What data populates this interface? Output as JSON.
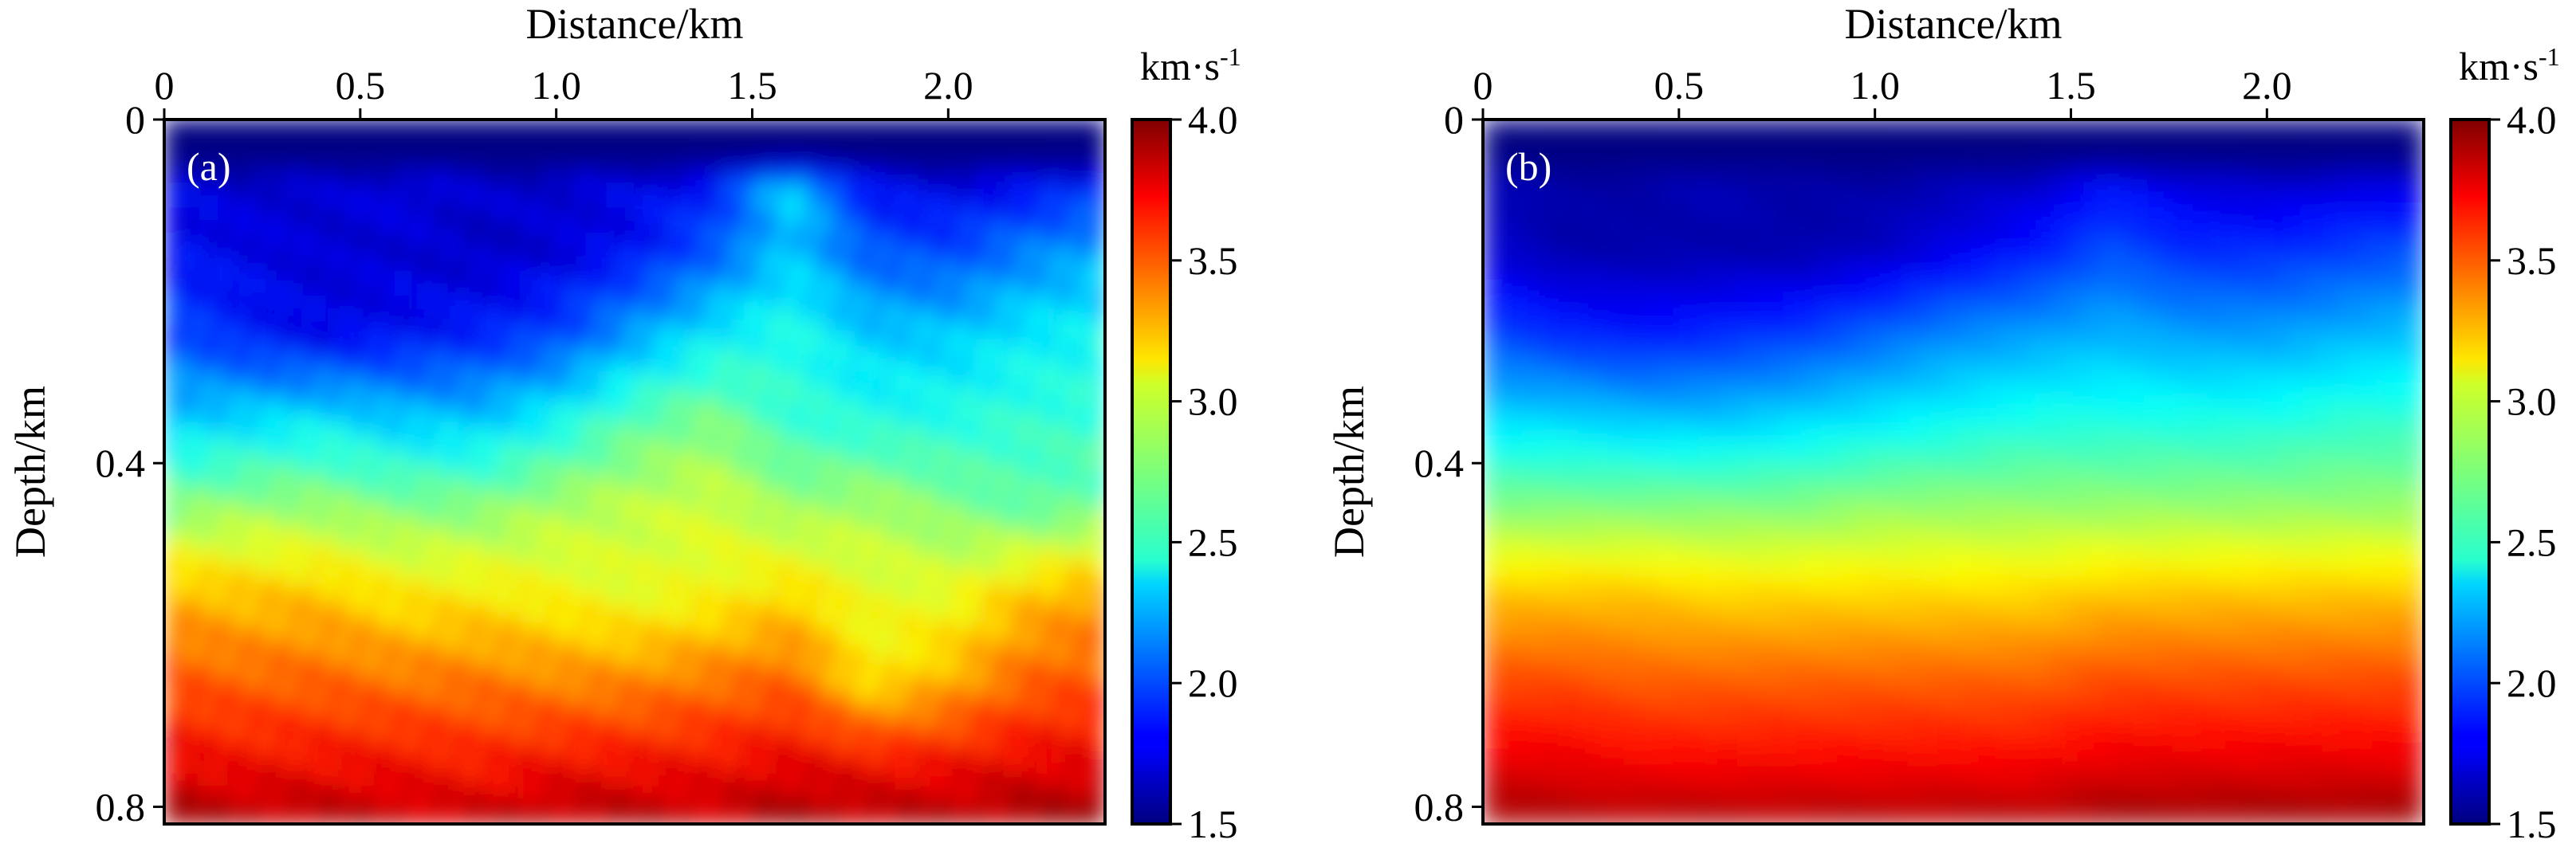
{
  "chart_data": [
    {
      "type": "heatmap",
      "panel_label": "(a)",
      "xlabel": "Distance/km",
      "ylabel": "Depth/km",
      "xlim": [
        0,
        2.4
      ],
      "ylim": [
        0,
        0.82
      ],
      "x_ticks": [
        0,
        0.5,
        1.0,
        1.5,
        2.0
      ],
      "x_tick_labels": [
        "0",
        "0.5",
        "1.0",
        "1.5",
        "2.0"
      ],
      "y_ticks": [
        0,
        0.4,
        0.8
      ],
      "y_tick_labels": [
        "0",
        "0.4",
        "0.8"
      ],
      "colorbar": {
        "unit": "km·s",
        "unit_exponent": "-1",
        "range": [
          1.5,
          4.0
        ],
        "ticks": [
          1.5,
          2.0,
          2.5,
          3.0,
          3.5,
          4.0
        ],
        "tick_labels": [
          "1.5",
          "2.0",
          "2.5",
          "3.0",
          "3.5",
          "4.0"
        ],
        "colormap": "jet"
      },
      "field_description": "velocity model with water layer (~1.5 km/s, depth < 0.06 km), dipping layers and a high-velocity salt-like body near x=1.6 km",
      "distance_samples_km": [
        0,
        0.2,
        0.4,
        0.6,
        0.8,
        1.0,
        1.2,
        1.4,
        1.6,
        1.8,
        2.0,
        2.2,
        2.4
      ],
      "depth_samples_km": [
        0,
        0.04,
        0.08,
        0.15,
        0.25,
        0.35,
        0.45,
        0.55,
        0.65,
        0.75,
        0.82
      ],
      "velocity_km_s": [
        [
          1.5,
          1.5,
          1.5,
          1.5,
          1.5,
          1.5,
          1.5,
          1.5,
          1.5,
          1.5,
          1.5,
          1.5,
          1.5
        ],
        [
          1.5,
          1.5,
          1.5,
          1.5,
          1.5,
          1.5,
          1.5,
          1.5,
          1.5,
          1.5,
          1.5,
          1.5,
          1.5
        ],
        [
          1.75,
          1.7,
          1.7,
          1.75,
          1.7,
          1.7,
          1.75,
          1.85,
          2.35,
          1.8,
          1.75,
          1.8,
          1.9
        ],
        [
          1.8,
          1.75,
          1.7,
          1.7,
          1.65,
          1.7,
          1.8,
          2.0,
          2.3,
          2.0,
          1.95,
          2.1,
          2.2
        ],
        [
          2.0,
          1.85,
          1.75,
          1.8,
          1.85,
          1.95,
          2.2,
          2.4,
          2.5,
          2.3,
          2.3,
          2.4,
          2.45
        ],
        [
          2.3,
          2.35,
          2.4,
          2.3,
          2.3,
          2.45,
          2.65,
          2.75,
          2.55,
          2.5,
          2.5,
          2.55,
          2.55
        ],
        [
          2.75,
          2.8,
          2.8,
          2.75,
          2.75,
          2.85,
          2.9,
          2.95,
          2.8,
          2.85,
          2.75,
          2.65,
          2.7
        ],
        [
          3.25,
          3.2,
          3.2,
          3.1,
          3.1,
          3.05,
          3.0,
          3.05,
          3.15,
          3.0,
          3.0,
          3.2,
          3.3
        ],
        [
          3.5,
          3.45,
          3.45,
          3.4,
          3.4,
          3.35,
          3.35,
          3.4,
          3.45,
          3.1,
          3.25,
          3.45,
          3.5
        ],
        [
          3.75,
          3.7,
          3.7,
          3.7,
          3.65,
          3.7,
          3.7,
          3.7,
          3.75,
          3.7,
          3.7,
          3.75,
          3.75
        ],
        [
          3.95,
          3.9,
          3.9,
          3.85,
          3.85,
          3.9,
          3.9,
          3.85,
          3.95,
          3.9,
          3.9,
          3.95,
          3.95
        ]
      ]
    },
    {
      "type": "heatmap",
      "panel_label": "(b)",
      "xlabel": "Distance/km",
      "ylabel": "Depth/km",
      "xlim": [
        0,
        2.4
      ],
      "ylim": [
        0,
        0.82
      ],
      "x_ticks": [
        0,
        0.5,
        1.0,
        1.5,
        2.0
      ],
      "x_tick_labels": [
        "0",
        "0.5",
        "1.0",
        "1.5",
        "2.0"
      ],
      "y_ticks": [
        0,
        0.4,
        0.8
      ],
      "y_tick_labels": [
        "0",
        "0.4",
        "0.8"
      ],
      "colorbar": {
        "unit": "km·s",
        "unit_exponent": "-1",
        "range": [
          1.5,
          4.0
        ],
        "ticks": [
          1.5,
          2.0,
          2.5,
          3.0,
          3.5,
          4.0
        ],
        "tick_labels": [
          "1.5",
          "2.0",
          "2.5",
          "3.0",
          "3.5",
          "4.0"
        ],
        "colormap": "jet"
      },
      "field_description": "smooth initial velocity model increasing with depth, water layer on top",
      "distance_samples_km": [
        0,
        0.2,
        0.4,
        0.6,
        0.8,
        1.0,
        1.2,
        1.4,
        1.6,
        1.8,
        2.0,
        2.2,
        2.4
      ],
      "depth_samples_km": [
        0,
        0.04,
        0.08,
        0.15,
        0.25,
        0.35,
        0.45,
        0.55,
        0.65,
        0.75,
        0.82
      ],
      "velocity_km_s": [
        [
          1.5,
          1.5,
          1.5,
          1.5,
          1.5,
          1.5,
          1.5,
          1.5,
          1.5,
          1.5,
          1.5,
          1.5,
          1.5
        ],
        [
          1.5,
          1.5,
          1.5,
          1.5,
          1.5,
          1.5,
          1.5,
          1.5,
          1.5,
          1.5,
          1.5,
          1.5,
          1.5
        ],
        [
          1.65,
          1.6,
          1.6,
          1.65,
          1.6,
          1.6,
          1.65,
          1.7,
          1.85,
          1.75,
          1.7,
          1.75,
          1.75
        ],
        [
          1.7,
          1.6,
          1.6,
          1.6,
          1.6,
          1.65,
          1.75,
          1.85,
          2.0,
          1.9,
          1.9,
          1.95,
          2.0
        ],
        [
          2.0,
          1.9,
          1.85,
          1.9,
          1.95,
          2.05,
          2.15,
          2.2,
          2.25,
          2.2,
          2.2,
          2.25,
          2.3
        ],
        [
          2.35,
          2.35,
          2.3,
          2.3,
          2.35,
          2.4,
          2.45,
          2.5,
          2.5,
          2.5,
          2.5,
          2.55,
          2.55
        ],
        [
          2.75,
          2.75,
          2.75,
          2.75,
          2.75,
          2.8,
          2.8,
          2.8,
          2.8,
          2.8,
          2.8,
          2.8,
          2.8
        ],
        [
          3.2,
          3.2,
          3.2,
          3.15,
          3.15,
          3.15,
          3.15,
          3.15,
          3.2,
          3.2,
          3.2,
          3.2,
          3.2
        ],
        [
          3.5,
          3.5,
          3.45,
          3.45,
          3.45,
          3.45,
          3.45,
          3.45,
          3.5,
          3.5,
          3.5,
          3.5,
          3.5
        ],
        [
          3.75,
          3.75,
          3.7,
          3.7,
          3.7,
          3.7,
          3.7,
          3.7,
          3.75,
          3.75,
          3.75,
          3.75,
          3.75
        ],
        [
          3.95,
          3.9,
          3.9,
          3.9,
          3.9,
          3.9,
          3.9,
          3.9,
          3.95,
          3.95,
          3.95,
          3.95,
          3.95
        ]
      ]
    }
  ]
}
